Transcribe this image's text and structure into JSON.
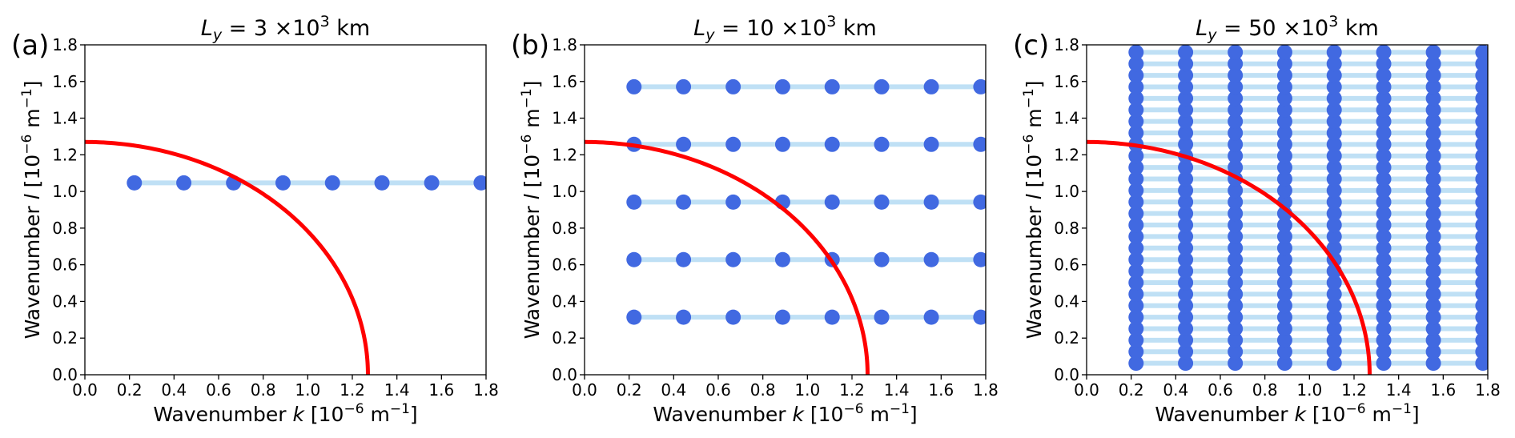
{
  "figure": {
    "colors": {
      "points": "#4169e1",
      "lines": "#bfe0f5",
      "curve": "#ff0000",
      "frame": "#000000"
    }
  },
  "chart_data": [
    {
      "type": "scatter",
      "panel_letter": "(a)",
      "title": {
        "pre": "L",
        "sub": "y",
        "mid": " = 3 ×10",
        "sup": "3",
        "post": " km"
      },
      "xlabel": {
        "pre": "Wavenumber ",
        "var": "k",
        "mid": " [10",
        "sup": "−6",
        "post": " m",
        "sup2": "−1",
        "end": "]"
      },
      "ylabel": {
        "pre": "Wavenumber ",
        "var": "l",
        "mid": " [10",
        "sup": "−6",
        "post": " m",
        "sup2": "−1",
        "end": "]"
      },
      "xlim": [
        0,
        1.8
      ],
      "ylim": [
        0,
        1.8
      ],
      "xticks": [
        "0.0",
        "0.2",
        "0.4",
        "0.6",
        "0.8",
        "1.0",
        "1.2",
        "1.4",
        "1.6",
        "1.8"
      ],
      "yticks": [
        "0.0",
        "0.2",
        "0.4",
        "0.6",
        "0.8",
        "1.0",
        "1.2",
        "1.4",
        "1.6",
        "1.8"
      ],
      "k_values": [
        0.222,
        0.444,
        0.667,
        0.889,
        1.111,
        1.333,
        1.556,
        1.778
      ],
      "l_values": [
        1.047
      ],
      "curve_radius": 1.27
    },
    {
      "type": "scatter",
      "panel_letter": "(b)",
      "title": {
        "pre": "L",
        "sub": "y",
        "mid": " = 10 ×10",
        "sup": "3",
        "post": " km"
      },
      "xlabel": {
        "pre": "Wavenumber ",
        "var": "k",
        "mid": " [10",
        "sup": "−6",
        "post": " m",
        "sup2": "−1",
        "end": "]"
      },
      "ylabel": {
        "pre": "Wavenumber ",
        "var": "l",
        "mid": " [10",
        "sup": "−6",
        "post": " m",
        "sup2": "−1",
        "end": "]"
      },
      "xlim": [
        0,
        1.8
      ],
      "ylim": [
        0,
        1.8
      ],
      "xticks": [
        "0.0",
        "0.2",
        "0.4",
        "0.6",
        "0.8",
        "1.0",
        "1.2",
        "1.4",
        "1.6",
        "1.8"
      ],
      "yticks": [
        "0.0",
        "0.2",
        "0.4",
        "0.6",
        "0.8",
        "1.0",
        "1.2",
        "1.4",
        "1.6",
        "1.8"
      ],
      "k_values": [
        0.222,
        0.444,
        0.667,
        0.889,
        1.111,
        1.333,
        1.556,
        1.778
      ],
      "l_values": [
        0.314,
        0.628,
        0.942,
        1.257,
        1.571
      ],
      "curve_radius": 1.27
    },
    {
      "type": "scatter",
      "panel_letter": "(c)",
      "title": {
        "pre": "L",
        "sub": "y",
        "mid": " = 50 ×10",
        "sup": "3",
        "post": " km"
      },
      "xlabel": {
        "pre": "Wavenumber ",
        "var": "k",
        "mid": " [10",
        "sup": "−6",
        "post": " m",
        "sup2": "−1",
        "end": "]"
      },
      "ylabel": {
        "pre": "Wavenumber ",
        "var": "l",
        "mid": " [10",
        "sup": "−6",
        "post": " m",
        "sup2": "−1",
        "end": "]"
      },
      "xlim": [
        0,
        1.8
      ],
      "ylim": [
        0,
        1.8
      ],
      "xticks": [
        "0.0",
        "0.2",
        "0.4",
        "0.6",
        "0.8",
        "1.0",
        "1.2",
        "1.4",
        "1.6",
        "1.8"
      ],
      "yticks": [
        "0.0",
        "0.2",
        "0.4",
        "0.6",
        "0.8",
        "1.0",
        "1.2",
        "1.4",
        "1.6",
        "1.8"
      ],
      "k_values": [
        0.222,
        0.444,
        0.667,
        0.889,
        1.111,
        1.333,
        1.556,
        1.778
      ],
      "l_values": [
        0.0628,
        0.1257,
        0.1885,
        0.2513,
        0.3142,
        0.377,
        0.4398,
        0.5027,
        0.5655,
        0.6283,
        0.6912,
        0.754,
        0.8168,
        0.8796,
        0.9425,
        1.0053,
        1.0681,
        1.131,
        1.1938,
        1.2566,
        1.3195,
        1.3823,
        1.4451,
        1.508,
        1.5708,
        1.6336,
        1.6965,
        1.7593
      ],
      "curve_radius": 1.27
    }
  ]
}
